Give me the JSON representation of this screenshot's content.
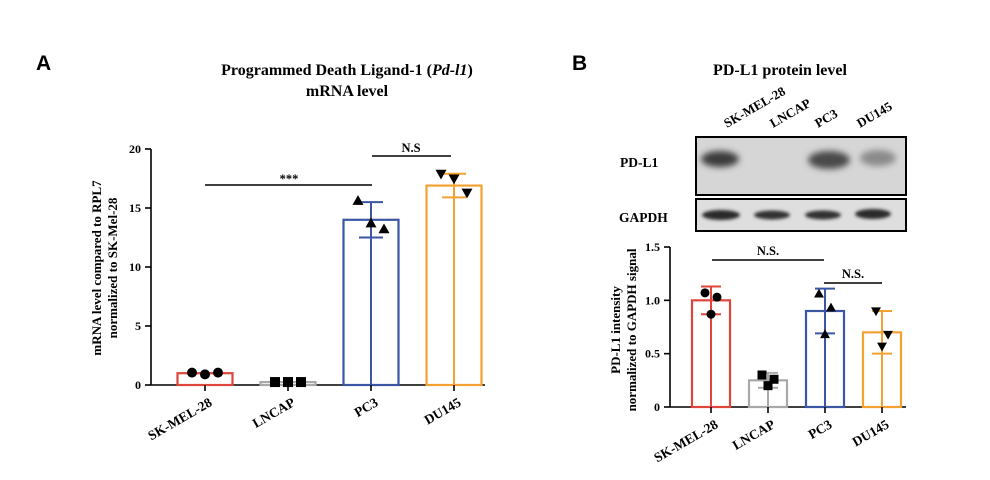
{
  "panels": {
    "a_letter": "A",
    "b_letter": "B"
  },
  "panel_a": {
    "title_line1_pre": "Programmed Death Ligand-1 (",
    "title_line1_italic": "Pd-l1",
    "title_line1_post": ")",
    "title_line2": "mRNA level",
    "ylabel_line1": "mRNA level compared to RPL7",
    "ylabel_line2": "normalized to SK-Mel-28",
    "sig1": "***",
    "sig2": "N.S"
  },
  "panel_b": {
    "title": "PD-L1 protein level",
    "lane_labels": [
      "SK-MEL-28",
      "LNCAP",
      "PC3",
      "DU145"
    ],
    "blot_rows": [
      "PD-L1",
      "GAPDH"
    ],
    "ylabel_line1": "PD-L1 intensity",
    "ylabel_line2": "normalized to GAPDH signal",
    "sig1": "N.S.",
    "sig2": "N.S."
  },
  "chart_data": [
    {
      "type": "bar",
      "categories": [
        "SK-MEL-28",
        "LNCAP",
        "PC3",
        "DU145"
      ],
      "ylim": [
        0,
        20
      ],
      "yticks": [
        "0",
        "5",
        "10",
        "15",
        "20"
      ],
      "colors": [
        "#e0453c",
        "#a9a9a9",
        "#3a56a5",
        "#f3a231"
      ],
      "markers": [
        "circle",
        "square",
        "triangle-up",
        "triangle-down"
      ],
      "series": [
        {
          "values": [
            1.0,
            0.25,
            14.0,
            16.9
          ],
          "error": [
            0.0,
            0.0,
            1.5,
            1.0
          ],
          "points": [
            [
              1.05,
              0.9,
              1.05
            ],
            [
              0.25,
              0.25,
              0.25
            ],
            [
              15.6,
              13.7,
              13.2
            ],
            [
              17.9,
              17.5,
              16.3
            ]
          ]
        }
      ]
    },
    {
      "type": "bar",
      "categories": [
        "SK-MEL-28",
        "LNCAP",
        "PC3",
        "DU145"
      ],
      "ylim": [
        0,
        1.5
      ],
      "yticks": [
        "0",
        "0.5",
        "1.0",
        "1.5"
      ],
      "colors": [
        "#e0453c",
        "#a9a9a9",
        "#3a56a5",
        "#f3a231"
      ],
      "markers": [
        "circle",
        "square",
        "triangle-up",
        "triangle-down"
      ],
      "series": [
        {
          "values": [
            1.0,
            0.25,
            0.9,
            0.7
          ],
          "error": [
            0.13,
            0.07,
            0.21,
            0.2
          ],
          "points": [
            [
              1.07,
              1.03,
              0.87
            ],
            [
              0.3,
              0.26,
              0.2
            ],
            [
              1.06,
              0.93,
              0.68
            ],
            [
              0.9,
              0.68,
              0.57
            ]
          ]
        }
      ]
    }
  ]
}
